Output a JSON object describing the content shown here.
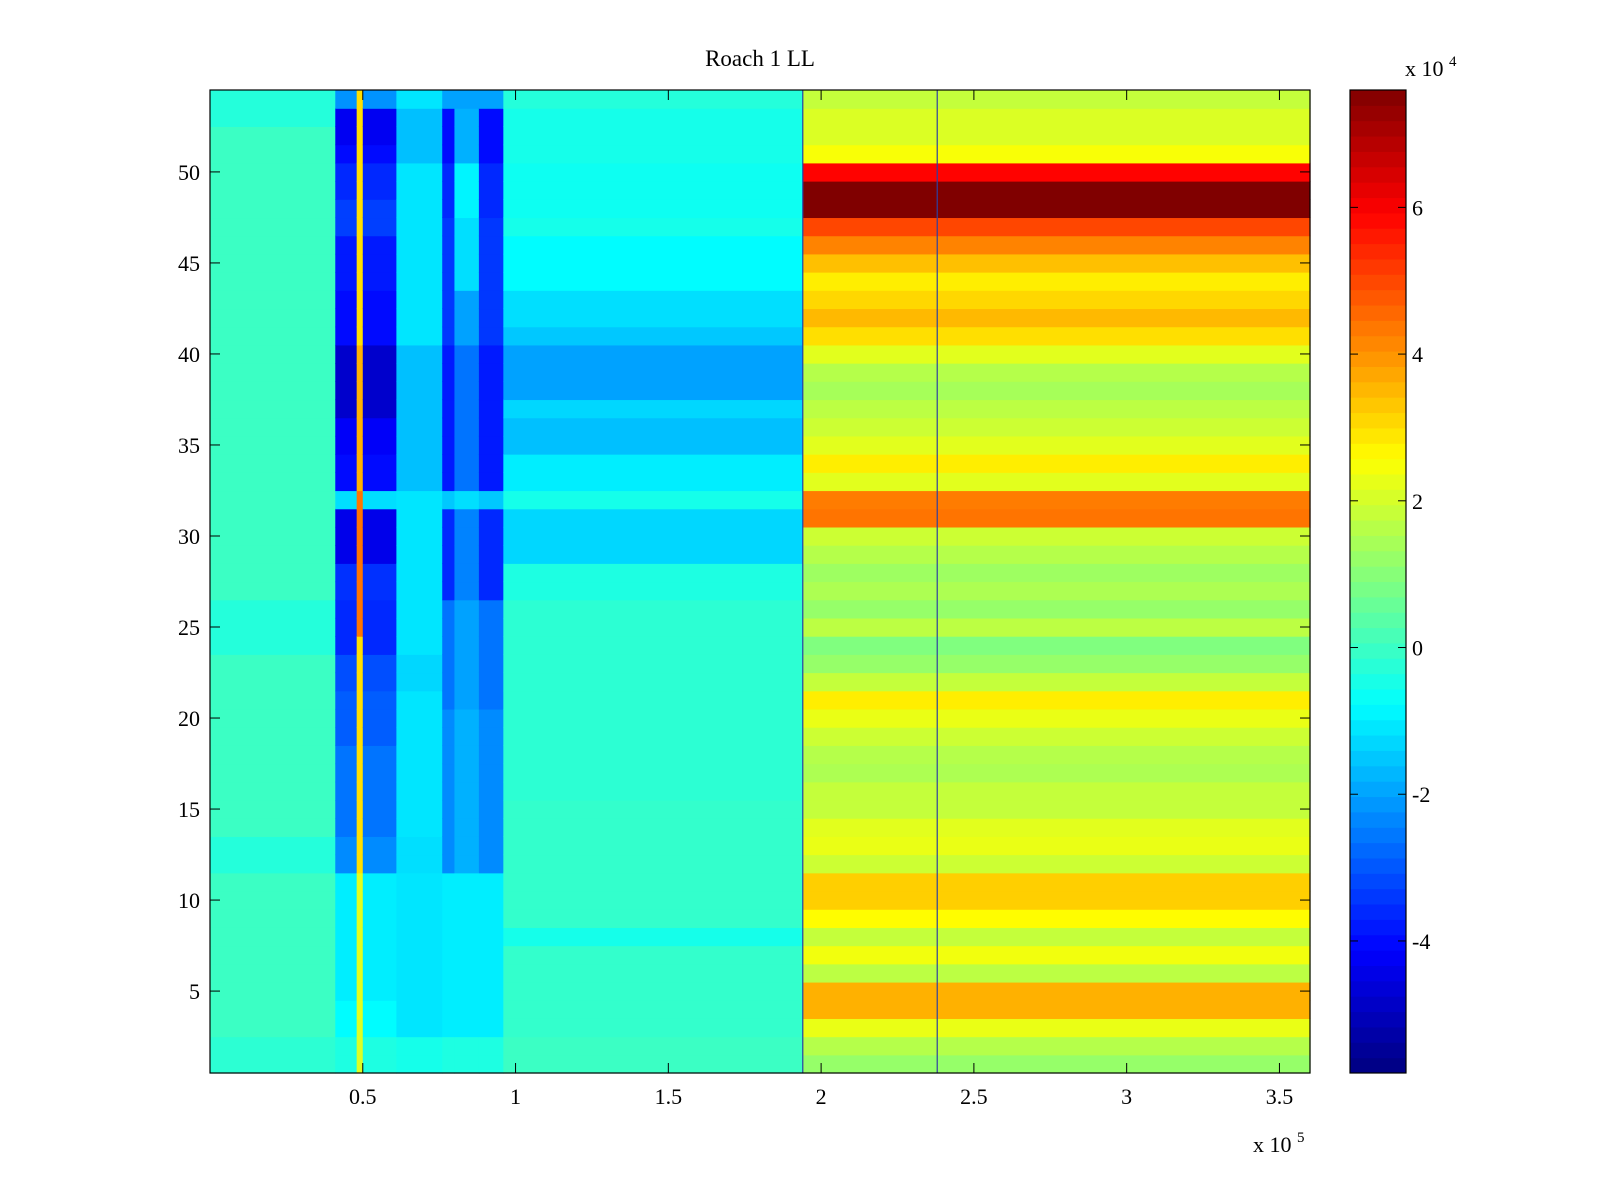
{
  "chart_data": {
    "type": "heatmap",
    "title": "Roach 1 LL",
    "xlabel": "",
    "ylabel": "",
    "x_multiplier_label": "x 10",
    "x_multiplier_exp": "5",
    "colorbar_multiplier_label": "x 10",
    "colorbar_multiplier_exp": "4",
    "xlim": [
      0,
      3.6
    ],
    "ylim": [
      0.5,
      54.5
    ],
    "x_ticks": [
      {
        "value": 0.5,
        "label": "0.5"
      },
      {
        "value": 1,
        "label": "1"
      },
      {
        "value": 1.5,
        "label": "1.5"
      },
      {
        "value": 2,
        "label": "2"
      },
      {
        "value": 2.5,
        "label": "2.5"
      },
      {
        "value": 3,
        "label": "3"
      },
      {
        "value": 3.5,
        "label": "3.5"
      }
    ],
    "y_ticks": [
      {
        "value": 5,
        "label": "5"
      },
      {
        "value": 10,
        "label": "10"
      },
      {
        "value": 15,
        "label": "15"
      },
      {
        "value": 20,
        "label": "20"
      },
      {
        "value": 25,
        "label": "25"
      },
      {
        "value": 30,
        "label": "30"
      },
      {
        "value": 35,
        "label": "35"
      },
      {
        "value": 40,
        "label": "40"
      },
      {
        "value": 45,
        "label": "45"
      },
      {
        "value": 50,
        "label": "50"
      }
    ],
    "colorbar": {
      "colormap": "jet",
      "clim": [
        -5.8,
        7.6
      ],
      "ticks": [
        {
          "value": -4,
          "label": "-4"
        },
        {
          "value": -2,
          "label": "-2"
        },
        {
          "value": 0,
          "label": "0"
        },
        {
          "value": 2,
          "label": "2"
        },
        {
          "value": 4,
          "label": "4"
        },
        {
          "value": 6,
          "label": "6"
        }
      ]
    },
    "rows": 54,
    "column_segments": [
      {
        "x": [
          0.0,
          0.41
        ],
        "profile": "base"
      },
      {
        "x": [
          0.41,
          0.48
        ],
        "profile": "blue_a"
      },
      {
        "x": [
          0.48,
          0.5
        ],
        "profile": "spike"
      },
      {
        "x": [
          0.5,
          0.61
        ],
        "profile": "blue_a"
      },
      {
        "x": [
          0.61,
          0.76
        ],
        "profile": "cyan"
      },
      {
        "x": [
          0.76,
          0.8
        ],
        "profile": "blue_b"
      },
      {
        "x": [
          0.8,
          0.88
        ],
        "profile": "light_blue"
      },
      {
        "x": [
          0.88,
          0.96
        ],
        "profile": "blue_b"
      },
      {
        "x": [
          0.96,
          1.94
        ],
        "profile": "mid_cyan"
      },
      {
        "x": [
          1.94,
          3.6
        ],
        "profile": "warm"
      }
    ],
    "profiles": {
      "base": {
        "default": 0,
        "overrides": [
          [
            1,
            2,
            -0.2
          ],
          [
            12,
            13,
            -0.3
          ],
          [
            24,
            26,
            -0.3
          ],
          [
            53,
            54,
            -0.3
          ]
        ]
      },
      "blue_a": {
        "default": -2.5,
        "overrides": [
          [
            1,
            2,
            -0.4
          ],
          [
            3,
            4,
            -0.8
          ],
          [
            5,
            11,
            -1.0
          ],
          [
            12,
            13,
            -2.3
          ],
          [
            14,
            18,
            -2.6
          ],
          [
            19,
            21,
            -2.9
          ],
          [
            22,
            23,
            -3.1
          ],
          [
            24,
            26,
            -3.6
          ],
          [
            27,
            28,
            -3.5
          ],
          [
            29,
            31,
            -4.4
          ],
          [
            32,
            32,
            -1.2
          ],
          [
            33,
            34,
            -4.0
          ],
          [
            35,
            36,
            -4.2
          ],
          [
            37,
            40,
            -4.8
          ],
          [
            41,
            43,
            -4.0
          ],
          [
            44,
            46,
            -3.8
          ],
          [
            47,
            48,
            -3.3
          ],
          [
            49,
            50,
            -3.6
          ],
          [
            51,
            51,
            -4.0
          ],
          [
            52,
            53,
            -4.3
          ],
          [
            54,
            54,
            -2.2
          ]
        ]
      },
      "spike": {
        "default": 3,
        "overrides": [
          [
            1,
            3,
            2.1
          ],
          [
            4,
            11,
            2.2
          ],
          [
            25,
            32,
            4.4
          ],
          [
            33,
            40,
            3.6
          ]
        ]
      },
      "cyan": {
        "default": -1.1,
        "overrides": [
          [
            1,
            2,
            -0.5
          ],
          [
            12,
            13,
            -1.2
          ],
          [
            22,
            23,
            -1.3
          ],
          [
            33,
            40,
            -1.6
          ],
          [
            51,
            53,
            -1.6
          ]
        ]
      },
      "blue_b": {
        "default": -3.0,
        "overrides": [
          [
            1,
            2,
            -0.4
          ],
          [
            3,
            11,
            -1.0
          ],
          [
            12,
            20,
            -2.3
          ],
          [
            21,
            26,
            -2.6
          ],
          [
            27,
            31,
            -3.6
          ],
          [
            32,
            32,
            -1.5
          ],
          [
            33,
            40,
            -3.8
          ],
          [
            41,
            47,
            -3.4
          ],
          [
            48,
            50,
            -3.6
          ],
          [
            51,
            53,
            -4.0
          ],
          [
            54,
            54,
            -2.0
          ]
        ]
      },
      "light_blue": {
        "default": -2.0,
        "overrides": [
          [
            1,
            2,
            -0.4
          ],
          [
            3,
            11,
            -1.0
          ],
          [
            12,
            20,
            -1.8
          ],
          [
            27,
            31,
            -2.4
          ],
          [
            32,
            32,
            -1.2
          ],
          [
            33,
            40,
            -2.6
          ],
          [
            44,
            47,
            -1.2
          ],
          [
            48,
            50,
            -0.9
          ],
          [
            51,
            53,
            -1.8
          ]
        ]
      },
      "mid_cyan": {
        "default": -0.6,
        "overrides": [
          [
            1,
            2,
            0.0
          ],
          [
            3,
            7,
            -0.1
          ],
          [
            8,
            8,
            -0.5
          ],
          [
            9,
            15,
            -0.1
          ],
          [
            16,
            26,
            -0.2
          ],
          [
            27,
            28,
            -0.4
          ],
          [
            29,
            31,
            -1.3
          ],
          [
            32,
            32,
            -0.5
          ],
          [
            33,
            34,
            -1.0
          ],
          [
            35,
            36,
            -1.6
          ],
          [
            37,
            37,
            -1.3
          ],
          [
            38,
            40,
            -2.0
          ],
          [
            41,
            41,
            -1.5
          ],
          [
            42,
            43,
            -1.2
          ],
          [
            44,
            46,
            -0.8
          ],
          [
            47,
            47,
            -0.5
          ],
          [
            48,
            50,
            -0.6
          ],
          [
            51,
            53,
            -0.5
          ],
          [
            54,
            54,
            -0.3
          ]
        ]
      },
      "warm": {
        "default": 1.8,
        "overrides": [
          [
            1,
            1,
            1.2
          ],
          [
            2,
            2,
            1.6
          ],
          [
            3,
            3,
            2.3
          ],
          [
            4,
            5,
            3.6
          ],
          [
            6,
            6,
            1.7
          ],
          [
            7,
            7,
            2.4
          ],
          [
            8,
            8,
            1.8
          ],
          [
            9,
            9,
            2.6
          ],
          [
            10,
            11,
            3.2
          ],
          [
            12,
            12,
            1.9
          ],
          [
            13,
            13,
            2.3
          ],
          [
            14,
            14,
            2.2
          ],
          [
            15,
            16,
            1.8
          ],
          [
            17,
            17,
            1.5
          ],
          [
            18,
            18,
            1.6
          ],
          [
            19,
            19,
            1.9
          ],
          [
            20,
            20,
            2.3
          ],
          [
            21,
            21,
            2.8
          ],
          [
            22,
            22,
            1.8
          ],
          [
            23,
            23,
            1.2
          ],
          [
            24,
            24,
            0.9
          ],
          [
            25,
            25,
            1.7
          ],
          [
            26,
            26,
            1.2
          ],
          [
            27,
            27,
            1.5
          ],
          [
            28,
            28,
            1.3
          ],
          [
            29,
            29,
            1.6
          ],
          [
            30,
            30,
            1.9
          ],
          [
            31,
            31,
            4.4
          ],
          [
            32,
            32,
            4.3
          ],
          [
            33,
            33,
            2.2
          ],
          [
            34,
            34,
            2.8
          ],
          [
            35,
            35,
            2.2
          ],
          [
            36,
            36,
            1.9
          ],
          [
            37,
            37,
            1.7
          ],
          [
            38,
            38,
            1.4
          ],
          [
            39,
            39,
            1.6
          ],
          [
            40,
            40,
            2.2
          ],
          [
            41,
            41,
            3.0
          ],
          [
            42,
            42,
            3.5
          ],
          [
            43,
            43,
            3.1
          ],
          [
            44,
            44,
            2.8
          ],
          [
            45,
            45,
            3.4
          ],
          [
            46,
            46,
            4.2
          ],
          [
            47,
            47,
            5.0
          ],
          [
            48,
            49,
            7.6
          ],
          [
            50,
            50,
            5.9
          ],
          [
            51,
            51,
            2.5
          ],
          [
            52,
            53,
            2.1
          ],
          [
            54,
            54,
            1.8
          ]
        ]
      }
    },
    "vertical_lines": [
      {
        "x": 1.94,
        "color": "#2f3fa0"
      },
      {
        "x": 2.38,
        "color": "#2f3fa0"
      }
    ]
  }
}
